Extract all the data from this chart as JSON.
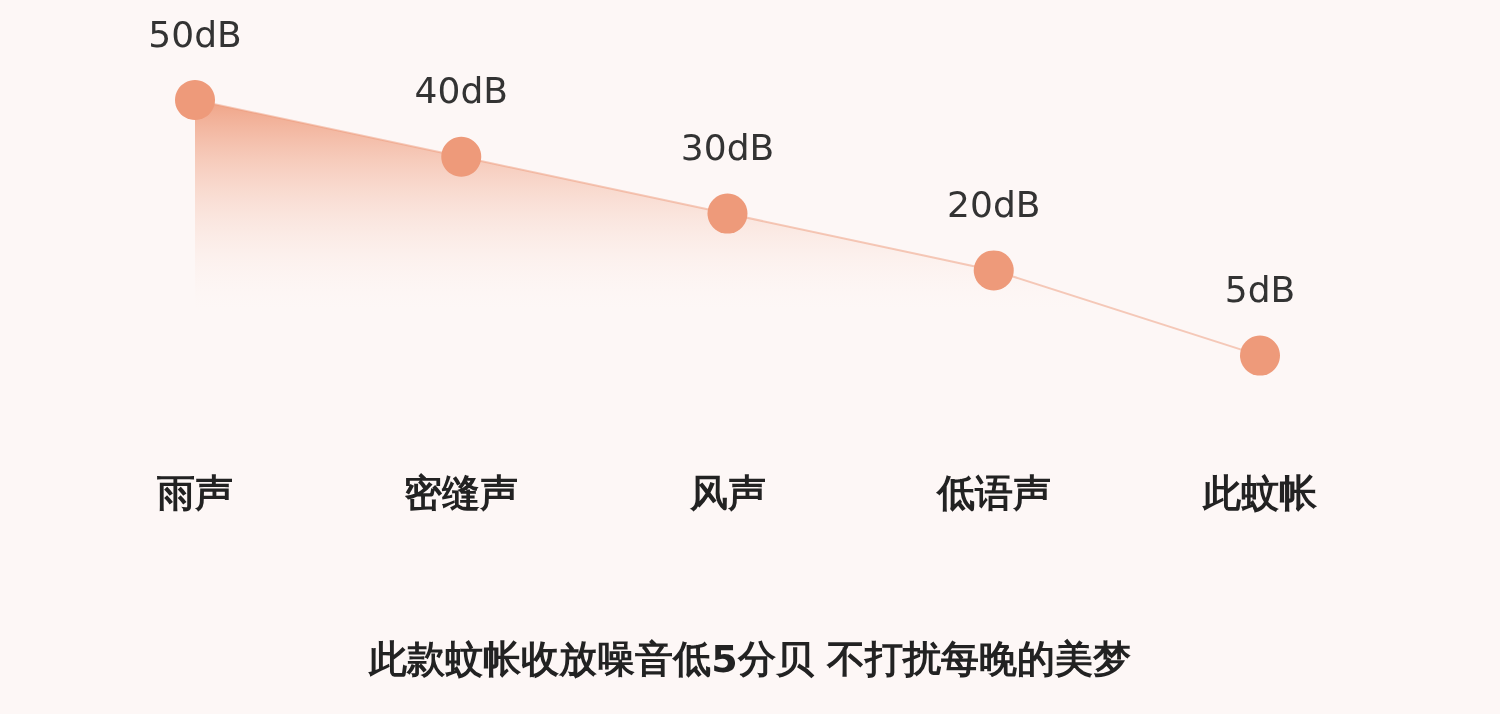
{
  "chart_data": {
    "type": "area",
    "categories": [
      "雨声",
      "密缝声",
      "风声",
      "低语声",
      "此蚊帐"
    ],
    "values": [
      50,
      40,
      30,
      20,
      5
    ],
    "value_labels": [
      "50dB",
      "40dB",
      "30dB",
      "20dB",
      "5dB"
    ],
    "color": "#ee9a7a",
    "marker": "circle",
    "line_style": "solid",
    "annotations": [
      "此款蚊帐收放噪音低5分贝 不打扰每晚的美梦"
    ]
  }
}
